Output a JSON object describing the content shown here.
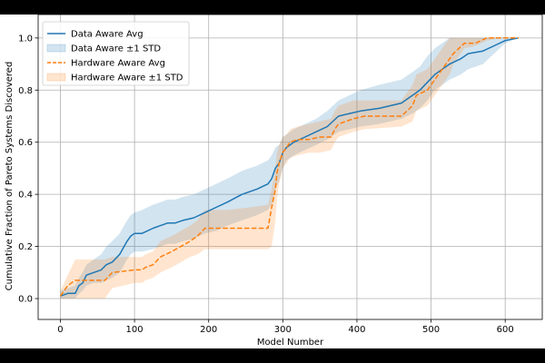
{
  "chart_data": {
    "type": "line",
    "title": "",
    "xlabel": "Model Number",
    "ylabel": "Cumulative Fraction of Pareto Systems Discovered",
    "xlim": [
      -30,
      650
    ],
    "ylim": [
      -0.08,
      1.09
    ],
    "xticks": [
      0,
      100,
      200,
      300,
      400,
      500,
      600
    ],
    "yticks": [
      0.0,
      0.2,
      0.4,
      0.6,
      0.8,
      1.0
    ],
    "xtick_labels": [
      "0",
      "100",
      "200",
      "300",
      "400",
      "500",
      "600"
    ],
    "ytick_labels": [
      "0.0",
      "0.2",
      "0.4",
      "0.6",
      "0.8",
      "1.0"
    ],
    "grid": true,
    "legend_position": "upper-left",
    "colors": {
      "data_aware": "#1f77b4",
      "hardware_aware": "#ff7f0e"
    },
    "series": [
      {
        "name": "Data Aware Avg",
        "style": "solid",
        "color": "#1f77b4",
        "x": [
          0,
          10,
          20,
          25,
          30,
          35,
          45,
          55,
          62,
          70,
          80,
          90,
          95,
          100,
          110,
          125,
          135,
          145,
          155,
          165,
          180,
          195,
          210,
          225,
          245,
          265,
          280,
          285,
          290,
          295,
          300,
          305,
          315,
          330,
          345,
          360,
          375,
          390,
          405,
          430,
          460,
          475,
          485,
          495,
          505,
          515,
          525,
          540,
          550,
          570,
          585,
          600,
          618
        ],
        "y": [
          0.01,
          0.02,
          0.02,
          0.05,
          0.06,
          0.09,
          0.1,
          0.11,
          0.13,
          0.14,
          0.17,
          0.22,
          0.24,
          0.25,
          0.25,
          0.27,
          0.28,
          0.29,
          0.29,
          0.3,
          0.31,
          0.33,
          0.35,
          0.37,
          0.4,
          0.42,
          0.44,
          0.46,
          0.5,
          0.52,
          0.56,
          0.58,
          0.6,
          0.62,
          0.64,
          0.66,
          0.7,
          0.71,
          0.72,
          0.73,
          0.75,
          0.78,
          0.8,
          0.83,
          0.86,
          0.88,
          0.9,
          0.92,
          0.94,
          0.95,
          0.97,
          0.99,
          1.0
        ]
      },
      {
        "name": "Data Aware ±1 STD",
        "style": "band",
        "color": "#1f77b4",
        "x": [
          0,
          10,
          20,
          25,
          30,
          35,
          45,
          55,
          62,
          70,
          80,
          90,
          95,
          100,
          110,
          125,
          135,
          145,
          155,
          165,
          180,
          195,
          210,
          225,
          245,
          265,
          280,
          285,
          290,
          295,
          300,
          305,
          315,
          330,
          345,
          360,
          375,
          390,
          405,
          430,
          460,
          475,
          485,
          495,
          505,
          515,
          525,
          540,
          550,
          570,
          585,
          600,
          618
        ],
        "lower": [
          0.0,
          0.0,
          0.0,
          0.02,
          0.03,
          0.05,
          0.06,
          0.06,
          0.07,
          0.08,
          0.1,
          0.15,
          0.17,
          0.18,
          0.18,
          0.19,
          0.2,
          0.21,
          0.21,
          0.22,
          0.23,
          0.25,
          0.26,
          0.28,
          0.3,
          0.32,
          0.34,
          0.36,
          0.42,
          0.45,
          0.5,
          0.53,
          0.55,
          0.57,
          0.59,
          0.61,
          0.64,
          0.65,
          0.66,
          0.67,
          0.69,
          0.71,
          0.73,
          0.76,
          0.8,
          0.82,
          0.84,
          0.86,
          0.88,
          0.9,
          0.94,
          0.98,
          1.0
        ],
        "upper": [
          0.03,
          0.04,
          0.05,
          0.08,
          0.1,
          0.13,
          0.15,
          0.17,
          0.2,
          0.22,
          0.25,
          0.3,
          0.32,
          0.33,
          0.34,
          0.36,
          0.37,
          0.38,
          0.38,
          0.39,
          0.4,
          0.42,
          0.44,
          0.46,
          0.49,
          0.51,
          0.53,
          0.55,
          0.58,
          0.59,
          0.62,
          0.63,
          0.65,
          0.67,
          0.69,
          0.72,
          0.76,
          0.78,
          0.8,
          0.82,
          0.84,
          0.87,
          0.89,
          0.93,
          0.96,
          0.98,
          1.0,
          1.0,
          1.0,
          1.0,
          1.0,
          1.0,
          1.0
        ]
      },
      {
        "name": "Hardware Aware Avg",
        "style": "dashed",
        "color": "#ff7f0e",
        "x": [
          0,
          10,
          20,
          60,
          70,
          100,
          110,
          115,
          125,
          135,
          150,
          175,
          185,
          195,
          225,
          255,
          280,
          285,
          290,
          292,
          295,
          300,
          305,
          310,
          320,
          335,
          350,
          365,
          370,
          375,
          395,
          410,
          460,
          475,
          480,
          495,
          505,
          515,
          525,
          530,
          545,
          560,
          575,
          595,
          618
        ],
        "y": [
          0.01,
          0.05,
          0.07,
          0.07,
          0.1,
          0.11,
          0.11,
          0.12,
          0.13,
          0.16,
          0.18,
          0.22,
          0.24,
          0.27,
          0.27,
          0.27,
          0.27,
          0.35,
          0.42,
          0.48,
          0.52,
          0.56,
          0.58,
          0.6,
          0.61,
          0.61,
          0.62,
          0.62,
          0.65,
          0.67,
          0.69,
          0.7,
          0.7,
          0.74,
          0.78,
          0.8,
          0.84,
          0.88,
          0.92,
          0.94,
          0.98,
          0.98,
          1.0,
          1.0,
          1.0
        ]
      },
      {
        "name": "Hardware Aware ±1 STD",
        "style": "band",
        "color": "#ff7f0e",
        "x": [
          0,
          10,
          20,
          60,
          70,
          100,
          110,
          115,
          125,
          135,
          150,
          175,
          185,
          195,
          225,
          255,
          280,
          285,
          290,
          292,
          295,
          300,
          305,
          310,
          320,
          335,
          350,
          365,
          370,
          375,
          395,
          410,
          460,
          475,
          480,
          495,
          505,
          515,
          525,
          530,
          545,
          560,
          575,
          595,
          618
        ],
        "lower": [
          0.0,
          0.0,
          0.0,
          0.0,
          0.04,
          0.06,
          0.06,
          0.07,
          0.08,
          0.1,
          0.12,
          0.16,
          0.17,
          0.19,
          0.19,
          0.19,
          0.19,
          0.2,
          0.3,
          0.38,
          0.44,
          0.5,
          0.52,
          0.54,
          0.55,
          0.56,
          0.56,
          0.57,
          0.6,
          0.62,
          0.64,
          0.65,
          0.66,
          0.68,
          0.72,
          0.74,
          0.78,
          0.82,
          0.86,
          0.9,
          0.96,
          0.97,
          0.99,
          1.0,
          1.0
        ],
        "upper": [
          0.03,
          0.09,
          0.15,
          0.15,
          0.16,
          0.16,
          0.16,
          0.17,
          0.18,
          0.22,
          0.24,
          0.28,
          0.3,
          0.34,
          0.34,
          0.35,
          0.36,
          0.42,
          0.5,
          0.56,
          0.59,
          0.62,
          0.63,
          0.65,
          0.66,
          0.67,
          0.68,
          0.69,
          0.72,
          0.74,
          0.76,
          0.76,
          0.76,
          0.82,
          0.86,
          0.88,
          0.92,
          0.96,
          1.0,
          1.0,
          1.0,
          1.0,
          1.0,
          1.0,
          1.0
        ]
      }
    ]
  }
}
